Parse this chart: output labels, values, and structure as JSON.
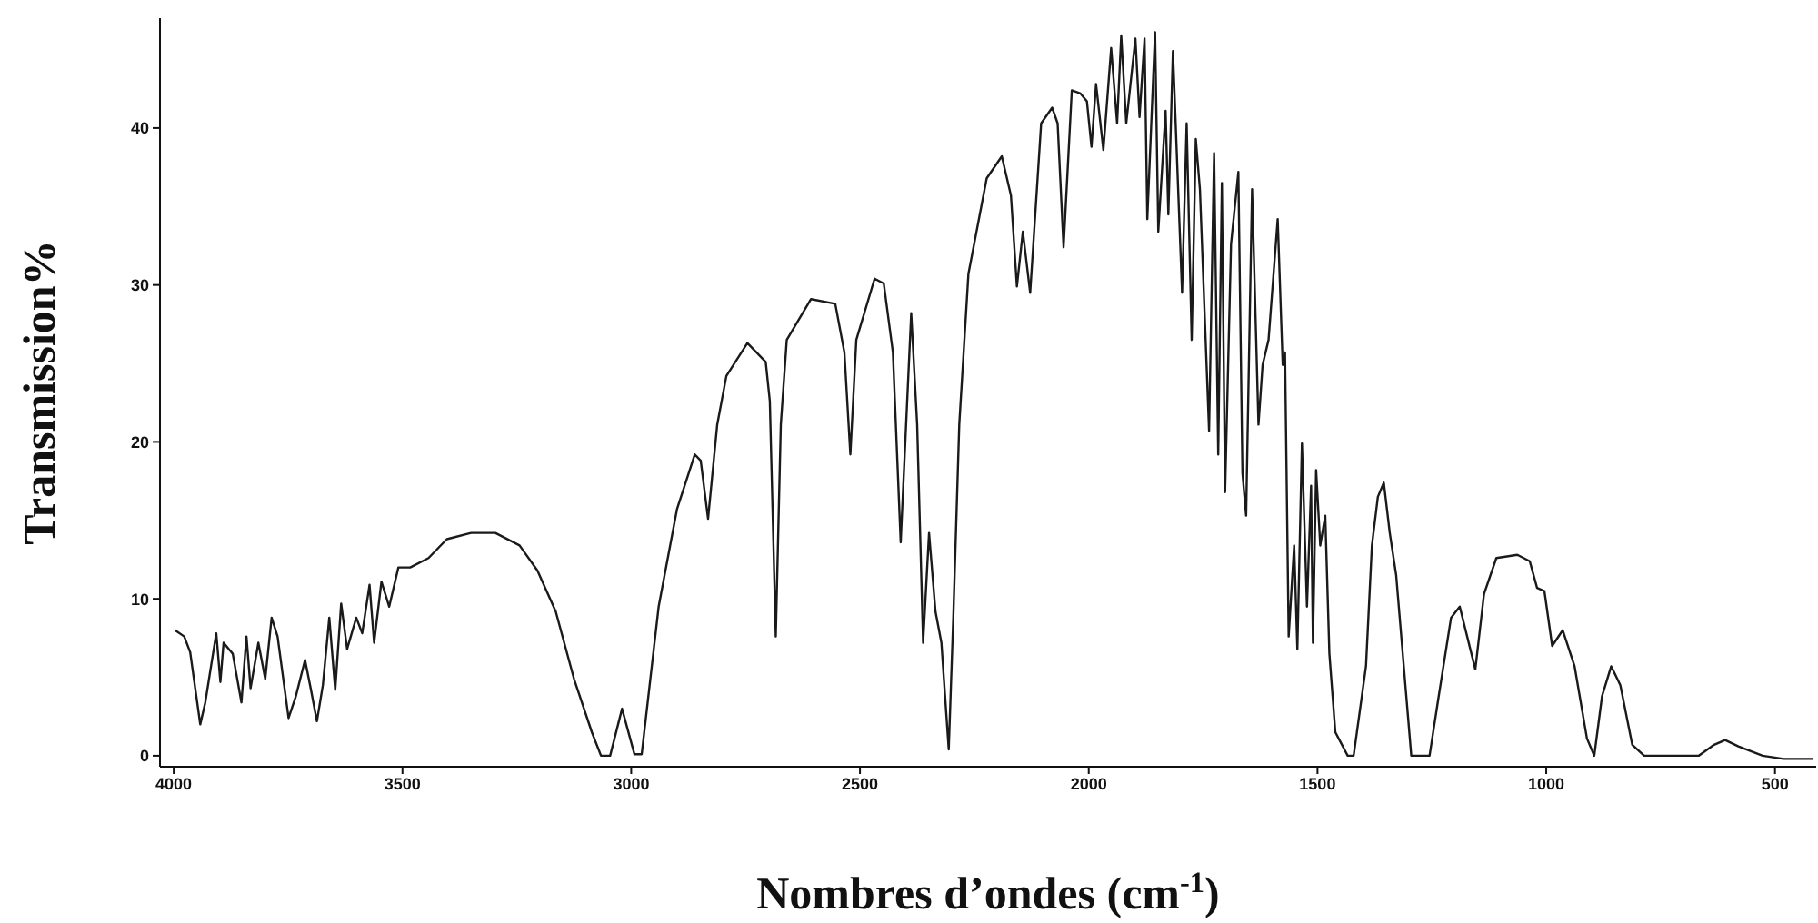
{
  "chart_data": {
    "type": "line",
    "xlabel": "Nombres d’ondes (cm$^{-1}$)",
    "ylabel": "Transmission%",
    "xlim": [
      4030,
      410
    ],
    "ylim": [
      -0.7,
      47
    ],
    "xticks": [
      4000,
      3500,
      3000,
      2500,
      2000,
      1500,
      1000,
      500
    ],
    "yticks": [
      0,
      10,
      20,
      30,
      40
    ],
    "grid": false,
    "marker": "none",
    "line_style": "solid",
    "series": [
      {
        "color": "#1a1a1a",
        "x": [
          3997,
          3977,
          3964,
          3942,
          3931,
          3907,
          3898,
          3891,
          3871,
          3852,
          3841,
          3832,
          3815,
          3800,
          3786,
          3773,
          3749,
          3733,
          3713,
          3700,
          3687,
          3674,
          3660,
          3647,
          3634,
          3621,
          3601,
          3588,
          3572,
          3562,
          3546,
          3529,
          3509,
          3483,
          3443,
          3403,
          3350,
          3297,
          3244,
          3205,
          3165,
          3125,
          3086,
          3066,
          3046,
          3020,
          2993,
          2977,
          2940,
          2900,
          2861,
          2848,
          2832,
          2812,
          2792,
          2746,
          2706,
          2697,
          2684,
          2673,
          2660,
          2607,
          2554,
          2534,
          2521,
          2508,
          2468,
          2448,
          2428,
          2411,
          2388,
          2375,
          2362,
          2349,
          2335,
          2322,
          2306,
          2296,
          2283,
          2263,
          2223,
          2190,
          2170,
          2157,
          2144,
          2128,
          2104,
          2080,
          2068,
          2055,
          2037,
          2018,
          2004,
          1994,
          1984,
          1968,
          1951,
          1938,
          1929,
          1918,
          1898,
          1889,
          1878,
          1872,
          1855,
          1848,
          1832,
          1826,
          1816,
          1796,
          1786,
          1775,
          1766,
          1757,
          1737,
          1726,
          1717,
          1709,
          1702,
          1689,
          1673,
          1664,
          1656,
          1643,
          1629,
          1620,
          1607,
          1587,
          1576,
          1571,
          1563,
          1551,
          1544,
          1534,
          1523,
          1514,
          1510,
          1503,
          1494,
          1483,
          1474,
          1461,
          1434,
          1421,
          1394,
          1381,
          1368,
          1355,
          1342,
          1328,
          1295,
          1255,
          1235,
          1208,
          1189,
          1155,
          1136,
          1109,
          1063,
          1036,
          1020,
          1004,
          987,
          964,
          938,
          911,
          895,
          878,
          858,
          838,
          812,
          786,
          726,
          667,
          633,
          609,
          580,
          527,
          481,
          416
        ],
        "values": [
          8.0,
          7.6,
          6.6,
          2.0,
          3.4,
          7.8,
          4.7,
          7.2,
          6.5,
          3.4,
          7.6,
          4.3,
          7.2,
          4.9,
          8.8,
          7.6,
          2.4,
          3.8,
          6.1,
          4.2,
          2.2,
          4.5,
          8.8,
          4.2,
          9.7,
          6.8,
          8.8,
          7.8,
          10.9,
          7.2,
          11.1,
          9.5,
          12.0,
          12.0,
          12.6,
          13.8,
          14.2,
          14.2,
          13.4,
          11.8,
          9.2,
          4.9,
          1.5,
          0,
          0,
          3.0,
          0.1,
          0.1,
          9.5,
          15.7,
          19.2,
          18.8,
          15.1,
          21.1,
          24.2,
          26.3,
          25.1,
          22.6,
          7.6,
          21.1,
          26.5,
          29.1,
          28.8,
          25.7,
          19.2,
          26.5,
          30.4,
          30.1,
          25.7,
          13.6,
          28.2,
          21.1,
          7.2,
          14.2,
          9.2,
          7.2,
          0.4,
          8.8,
          21.1,
          30.7,
          36.8,
          38.2,
          35.7,
          29.9,
          33.4,
          29.5,
          40.3,
          41.3,
          40.3,
          32.4,
          42.4,
          42.2,
          41.7,
          38.8,
          42.8,
          38.6,
          45.1,
          40.3,
          45.9,
          40.3,
          45.7,
          40.7,
          45.7,
          34.2,
          46.1,
          33.4,
          41.1,
          34.5,
          44.9,
          29.5,
          40.3,
          26.5,
          39.3,
          36.1,
          20.7,
          38.4,
          19.2,
          36.5,
          16.8,
          32.6,
          37.2,
          18.0,
          15.3,
          36.1,
          21.1,
          24.9,
          26.5,
          34.2,
          24.9,
          25.7,
          7.6,
          13.4,
          6.8,
          19.9,
          9.5,
          17.2,
          7.2,
          18.2,
          13.4,
          15.3,
          6.5,
          1.5,
          0,
          0,
          5.7,
          13.4,
          16.5,
          17.4,
          14.2,
          11.5,
          0,
          0,
          3.8,
          8.8,
          9.5,
          5.5,
          10.3,
          12.6,
          12.8,
          12.4,
          10.7,
          10.5,
          7.0,
          8.0,
          5.7,
          1.1,
          0,
          3.8,
          5.7,
          4.5,
          0.7,
          0,
          0,
          0,
          0.7,
          1.0,
          0.6,
          0,
          -0.2,
          -0.2
        ]
      }
    ]
  }
}
